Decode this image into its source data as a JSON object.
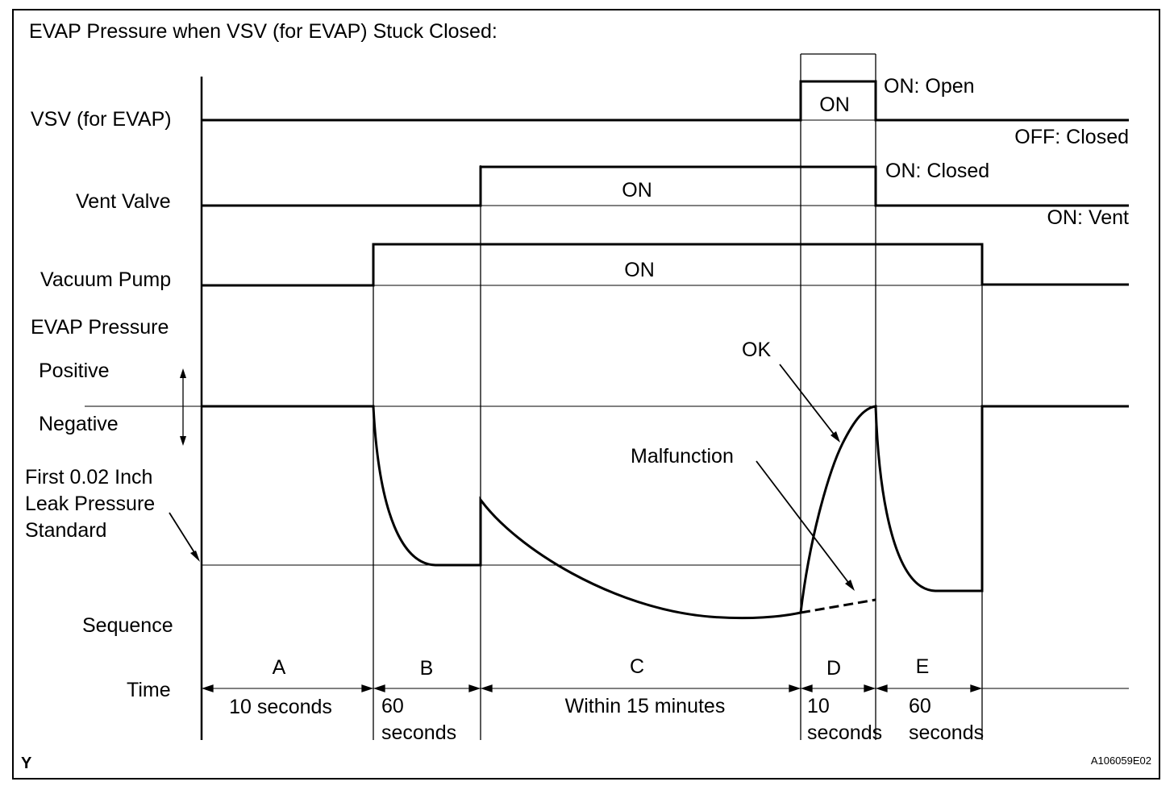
{
  "title": "EVAP Pressure when VSV (for EVAP) Stuck Closed:",
  "rows": {
    "vsv": "VSV (for EVAP)",
    "vent_valve": "Vent Valve",
    "vacuum_pump": "Vacuum Pump",
    "evap_pressure": "EVAP Pressure",
    "positive": "Positive",
    "negative": "Negative",
    "standard_line1": "First 0.02 Inch",
    "standard_line2": "Leak Pressure",
    "standard_line3": "Standard",
    "sequence": "Sequence",
    "time": "Time"
  },
  "states": {
    "vsv_on": "ON",
    "vsv_on_desc": "ON: Open",
    "vsv_off_desc": "OFF: Closed",
    "vent_on": "ON",
    "vent_on_desc": "ON: Closed",
    "vent_off_desc": "ON: Vent",
    "pump_on": "ON"
  },
  "annotations": {
    "ok": "OK",
    "malfunction": "Malfunction"
  },
  "sequence": [
    {
      "label": "A",
      "time_line1": "10 seconds",
      "time_line2": ""
    },
    {
      "label": "B",
      "time_line1": "60",
      "time_line2": "seconds"
    },
    {
      "label": "C",
      "time_line1": "Within 15 minutes",
      "time_line2": ""
    },
    {
      "label": "D",
      "time_line1": "10",
      "time_line2": "seconds"
    },
    {
      "label": "E",
      "time_line1": "60",
      "time_line2": "seconds"
    }
  ],
  "footer": {
    "left": "Y",
    "right": "A106059E02"
  }
}
